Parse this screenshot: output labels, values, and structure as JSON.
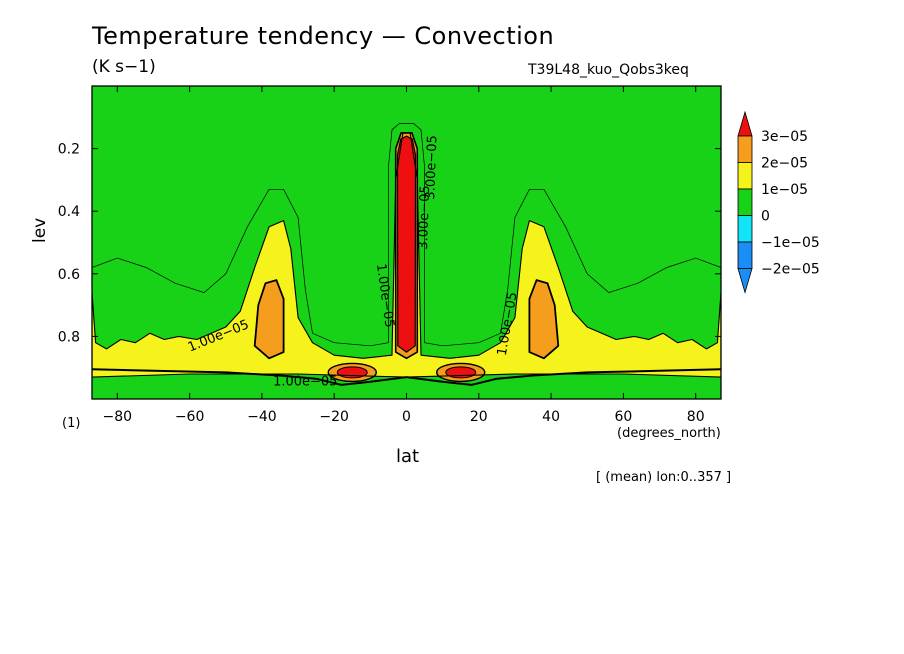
{
  "chart_data": {
    "type": "contour",
    "title": "Temperature tendency — Convection",
    "units": "(K s−1)",
    "run_label": "T39L48_kuo_Qobs3keq",
    "xlabel": "lat",
    "x_unit_label": "(degrees_north)",
    "ylabel": "lev",
    "y_scale_label": "(1)",
    "note": "[ (mean) lon:0..357 ]",
    "xlim": [
      -87,
      87
    ],
    "ylim": [
      1.0,
      0.0
    ],
    "x_ticks": [
      {
        "v": -80,
        "label": "−80"
      },
      {
        "v": -60,
        "label": "−60"
      },
      {
        "v": -40,
        "label": "−40"
      },
      {
        "v": -20,
        "label": "−20"
      },
      {
        "v": 0,
        "label": "0"
      },
      {
        "v": 20,
        "label": "20"
      },
      {
        "v": 40,
        "label": "40"
      },
      {
        "v": 60,
        "label": "60"
      },
      {
        "v": 80,
        "label": "80"
      }
    ],
    "y_ticks": [
      {
        "v": 0.2,
        "label": "0.2"
      },
      {
        "v": 0.4,
        "label": "0.4"
      },
      {
        "v": 0.6,
        "label": "0.6"
      },
      {
        "v": 0.8,
        "label": "0.8"
      }
    ],
    "levels": [
      -2e-05,
      -1e-05,
      0,
      1e-05,
      2e-05,
      3e-05
    ],
    "colorbar": [
      {
        "label": "3e−05",
        "color": "#ee1010"
      },
      {
        "label": "2e−05",
        "color": "#f59d1d"
      },
      {
        "label": "1e−05",
        "color": "#f6f21b"
      },
      {
        "label": "0",
        "color": "#18d218"
      },
      {
        "label": "−1e−05",
        "color": "#12e6f6"
      },
      {
        "label": "−2e−05",
        "color": "#1a8ef4"
      }
    ],
    "contour_labels": [
      {
        "text": "1.00e−05",
        "lat": -52,
        "lev": 0.8,
        "angle": -22
      },
      {
        "text": "1.00e−05",
        "lat": -6,
        "lev": 0.67,
        "angle": 82
      },
      {
        "text": "3.00e−05",
        "lat": 5,
        "lev": 0.42,
        "angle": -88
      },
      {
        "text": "3.00e−05",
        "lat": 7,
        "lev": 0.26,
        "angle": -88
      },
      {
        "text": "1.00e−05",
        "lat": 28,
        "lev": 0.76,
        "angle": -80
      },
      {
        "text": "1.00e−05",
        "lat": -28,
        "lev": 0.945,
        "angle": 0
      }
    ],
    "features": [
      {
        "name": "equatorial-column",
        "lat": 0,
        "lev_top": 0.16,
        "lev_bottom": 0.83,
        "max_level": "3e−05"
      },
      {
        "name": "south-midlat-plume",
        "lat": -38,
        "lev_top": 0.62,
        "lev_bottom": 0.87,
        "max_level": "2e−05"
      },
      {
        "name": "north-midlat-plume",
        "lat": 38,
        "lev_top": 0.62,
        "lev_bottom": 0.87,
        "max_level": "2e−05"
      },
      {
        "name": "south-lowlevel-max",
        "lat": -15,
        "lev": 0.92,
        "max_level": "3e−05"
      },
      {
        "name": "north-lowlevel-max",
        "lat": 15,
        "lev": 0.92,
        "max_level": "3e−05"
      }
    ]
  }
}
